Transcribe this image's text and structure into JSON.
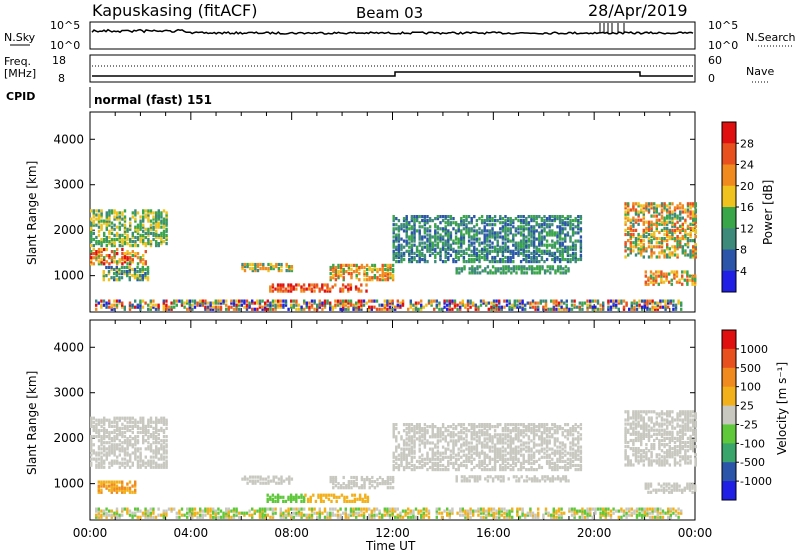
{
  "header": {
    "station": "Kapuskasing (fitACF)",
    "beam": "Beam 03",
    "date": "28/Apr/2019"
  },
  "left_labels": {
    "nsky": "N.Sky",
    "freq_line1": "Freq.",
    "freq_line2": "[MHz]",
    "cpid": "CPID",
    "nsky_top": "10^5",
    "nsky_bottom": "10^0",
    "freq_top": "18",
    "freq_bottom": "8"
  },
  "right_labels": {
    "nsearch": "N.Search",
    "nave": "Nave",
    "nsearch_top": "10^5",
    "nsearch_bottom": "10^0",
    "nave_top": "60",
    "nave_bottom": "0"
  },
  "cpid_text": "normal (fast) 151",
  "colors": {
    "power": [
      "#1f1fe6",
      "#2b55a8",
      "#3d8a7a",
      "#3aa64a",
      "#f0c21e",
      "#f08a1e",
      "#e8501e",
      "#e01010"
    ],
    "velocity": [
      "#1f1fe6",
      "#2a55a8",
      "#3aa56a",
      "#5ec83a",
      "#c8c8c0",
      "#f2b01a",
      "#f08a1e",
      "#e8501e",
      "#e01010"
    ]
  },
  "chart_data": [
    {
      "type": "heatmap",
      "panel": "power",
      "ylabel": "Slant Range [km]",
      "yticks": [
        "1000",
        "2000",
        "3000",
        "4000"
      ],
      "ylim": [
        200,
        4600
      ],
      "colorbar_label": "Power [dB]",
      "colorbar_ticks": [
        "4",
        "8",
        "12",
        "16",
        "20",
        "24",
        "28"
      ],
      "colorbar_range": [
        0,
        32
      ],
      "xlim": [
        0,
        24
      ],
      "xticks": [
        "00:00",
        "04:00",
        "08:00",
        "12:00",
        "16:00",
        "20:00",
        "00:00"
      ],
      "bands": [
        {
          "x": [
            0.0,
            3.0
          ],
          "r": [
            1650,
            2450
          ],
          "lvl": [
            2,
            4
          ]
        },
        {
          "x": [
            0.0,
            2.2
          ],
          "r": [
            1250,
            1600
          ],
          "lvl": [
            3,
            7
          ]
        },
        {
          "x": [
            0.5,
            2.3
          ],
          "r": [
            900,
            1200
          ],
          "lvl": [
            1,
            4
          ]
        },
        {
          "x": [
            6.0,
            8.0
          ],
          "r": [
            1100,
            1250
          ],
          "lvl": [
            2,
            5
          ]
        },
        {
          "x": [
            7.0,
            11.0
          ],
          "r": [
            650,
            800
          ],
          "lvl": [
            5,
            7
          ]
        },
        {
          "x": [
            9.5,
            12.0
          ],
          "r": [
            900,
            1250
          ],
          "lvl": [
            3,
            6
          ]
        },
        {
          "x": [
            12.0,
            19.5
          ],
          "r": [
            1300,
            2300
          ],
          "lvl": [
            1,
            3
          ]
        },
        {
          "x": [
            14.5,
            19.0
          ],
          "r": [
            1050,
            1200
          ],
          "lvl": [
            2,
            3
          ]
        },
        {
          "x": [
            21.2,
            24.0
          ],
          "r": [
            1400,
            2600
          ],
          "lvl": [
            2,
            6
          ]
        },
        {
          "x": [
            22.0,
            24.0
          ],
          "r": [
            800,
            1100
          ],
          "lvl": [
            3,
            6
          ]
        },
        {
          "x": [
            0.2,
            23.5
          ],
          "r": [
            250,
            450
          ],
          "lvl": [
            0,
            7
          ]
        }
      ]
    },
    {
      "type": "heatmap",
      "panel": "velocity",
      "ylabel": "Slant Range [km]",
      "yticks": [
        "1000",
        "2000",
        "3000",
        "4000"
      ],
      "ylim": [
        200,
        4600
      ],
      "xlabel": "Time UT",
      "colorbar_label": "Velocity [m s⁻¹]",
      "colorbar_ticks": [
        "1000",
        "500",
        "100",
        "25",
        "-25",
        "-100",
        "-500",
        "-1000"
      ],
      "xlim": [
        0,
        24
      ],
      "xticks": [
        "00:00",
        "04:00",
        "08:00",
        "12:00",
        "16:00",
        "20:00",
        "00:00"
      ],
      "bands": [
        {
          "x": [
            0.0,
            3.0
          ],
          "r": [
            1350,
            2450
          ],
          "lvl": [
            4,
            4
          ]
        },
        {
          "x": [
            0.3,
            1.8
          ],
          "r": [
            800,
            1050
          ],
          "lvl": [
            5,
            6
          ]
        },
        {
          "x": [
            6.0,
            8.0
          ],
          "r": [
            1000,
            1150
          ],
          "lvl": [
            4,
            4
          ]
        },
        {
          "x": [
            7.0,
            8.5
          ],
          "r": [
            600,
            750
          ],
          "lvl": [
            3,
            3
          ]
        },
        {
          "x": [
            8.5,
            11.0
          ],
          "r": [
            600,
            750
          ],
          "lvl": [
            5,
            5
          ]
        },
        {
          "x": [
            9.5,
            12.0
          ],
          "r": [
            900,
            1150
          ],
          "lvl": [
            4,
            4
          ]
        },
        {
          "x": [
            12.0,
            19.5
          ],
          "r": [
            1300,
            2300
          ],
          "lvl": [
            4,
            4
          ]
        },
        {
          "x": [
            14.5,
            19.0
          ],
          "r": [
            1050,
            1150
          ],
          "lvl": [
            4,
            4
          ]
        },
        {
          "x": [
            21.2,
            24.0
          ],
          "r": [
            1400,
            2600
          ],
          "lvl": [
            4,
            4
          ]
        },
        {
          "x": [
            22.0,
            24.0
          ],
          "r": [
            800,
            1000
          ],
          "lvl": [
            4,
            4
          ]
        },
        {
          "x": [
            0.2,
            23.5
          ],
          "r": [
            250,
            450
          ],
          "lvl": [
            3,
            5
          ]
        }
      ]
    }
  ]
}
